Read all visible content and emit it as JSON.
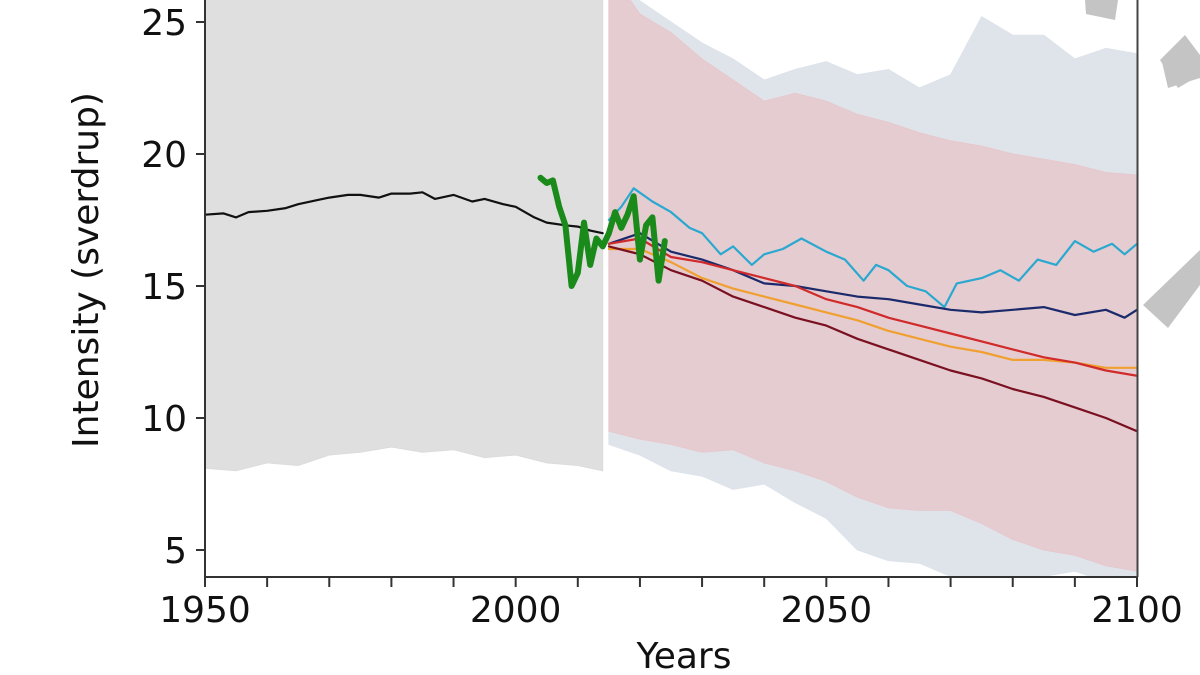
{
  "chart_data": {
    "type": "line",
    "title": "",
    "xlabel": "Years",
    "ylabel": "Intensity (sverdrup)",
    "xlim": [
      1950,
      2100
    ],
    "ylim": [
      4,
      26
    ],
    "x_ticks": [
      1950,
      2000,
      2050,
      2100
    ],
    "x_tick_labels": [
      "1950",
      "2000",
      "2050",
      "2100"
    ],
    "x_minor_tick_step": 10,
    "y_ticks": [
      5,
      10,
      15,
      20,
      25
    ],
    "y_tick_labels": [
      "5",
      "10",
      "15",
      "20",
      "25"
    ],
    "grid": false,
    "legend": null,
    "bands": [
      {
        "name": "historical-spread",
        "color": "#dcdcdc",
        "opacity": 0.9,
        "x": [
          1950,
          1955,
          1960,
          1965,
          1970,
          1975,
          1980,
          1985,
          1990,
          1995,
          2000,
          2005,
          2010,
          2014
        ],
        "lower": [
          8.1,
          8.0,
          8.3,
          8.2,
          8.6,
          8.7,
          8.9,
          8.7,
          8.8,
          8.5,
          8.6,
          8.3,
          8.2,
          8.0
        ],
        "upper": [
          27,
          27,
          27,
          27,
          27,
          27,
          27,
          27,
          27,
          27,
          27,
          26.5,
          26,
          27
        ]
      },
      {
        "name": "projection-spread-low-emissions",
        "color": "#dde3ea",
        "opacity": 0.95,
        "x": [
          2015,
          2020,
          2025,
          2030,
          2035,
          2040,
          2045,
          2050,
          2055,
          2060,
          2065,
          2070,
          2075,
          2080,
          2085,
          2090,
          2095,
          2100
        ],
        "lower": [
          9.0,
          8.6,
          8.0,
          7.8,
          7.3,
          7.5,
          6.8,
          6.2,
          5.0,
          4.6,
          4.5,
          4.0,
          3.6,
          3.8,
          4.0,
          4.2,
          3.8,
          3.9
        ],
        "upper": [
          27,
          25.8,
          25.0,
          24.2,
          23.6,
          22.8,
          23.2,
          23.5,
          23.0,
          23.2,
          22.5,
          23.0,
          25.2,
          24.5,
          24.5,
          23.6,
          24.0,
          23.8
        ]
      },
      {
        "name": "projection-spread-high-emissions",
        "color": "#e6c8cc",
        "opacity": 0.85,
        "x": [
          2015,
          2020,
          2025,
          2030,
          2035,
          2040,
          2045,
          2050,
          2055,
          2060,
          2065,
          2070,
          2075,
          2080,
          2085,
          2090,
          2095,
          2100
        ],
        "lower": [
          9.5,
          9.2,
          9.0,
          8.7,
          8.8,
          8.3,
          8.0,
          7.6,
          7.0,
          6.6,
          6.5,
          6.5,
          6.0,
          5.4,
          5.0,
          4.8,
          4.4,
          4.2
        ],
        "upper": [
          27,
          25.3,
          24.6,
          23.6,
          22.8,
          22.0,
          22.3,
          22.0,
          21.5,
          21.2,
          20.8,
          20.5,
          20.3,
          20.0,
          19.8,
          19.6,
          19.3,
          19.2
        ]
      }
    ],
    "series": [
      {
        "name": "historical-model-mean",
        "color": "#111111",
        "width": 2.2,
        "x": [
          1950,
          1953,
          1955,
          1957,
          1960,
          1963,
          1965,
          1968,
          1970,
          1973,
          1975,
          1978,
          1980,
          1983,
          1985,
          1987,
          1990,
          1993,
          1995,
          1998,
          2000,
          2003,
          2005,
          2008,
          2010,
          2012,
          2014
        ],
        "values": [
          17.7,
          17.75,
          17.6,
          17.8,
          17.85,
          17.95,
          18.1,
          18.25,
          18.35,
          18.45,
          18.45,
          18.35,
          18.5,
          18.5,
          18.55,
          18.3,
          18.45,
          18.2,
          18.3,
          18.1,
          18.0,
          17.6,
          17.4,
          17.3,
          17.25,
          17.1,
          17.0
        ]
      },
      {
        "name": "observations",
        "color": "#1a8a1a",
        "width": 6,
        "x": [
          2004,
          2005,
          2006,
          2007,
          2008,
          2009,
          2010,
          2011,
          2012,
          2013,
          2014,
          2015,
          2016,
          2017,
          2018,
          2019,
          2020,
          2021,
          2022,
          2023,
          2024
        ],
        "values": [
          19.1,
          18.9,
          19.0,
          18.0,
          17.3,
          15.0,
          15.5,
          17.4,
          15.8,
          16.8,
          16.5,
          17.0,
          17.8,
          17.2,
          17.7,
          18.4,
          16.0,
          17.3,
          17.6,
          15.2,
          16.7
        ]
      },
      {
        "name": "scenario-low-cyan",
        "color": "#2aa8d0",
        "width": 2.2,
        "x": [
          2015,
          2017,
          2019,
          2022,
          2025,
          2028,
          2030,
          2033,
          2035,
          2038,
          2040,
          2043,
          2046,
          2050,
          2053,
          2056,
          2058,
          2060,
          2063,
          2066,
          2069,
          2071,
          2075,
          2078,
          2081,
          2084,
          2087,
          2090,
          2093,
          2096,
          2098,
          2100
        ],
        "values": [
          17.5,
          18.0,
          18.7,
          18.2,
          17.8,
          17.2,
          17.0,
          16.2,
          16.5,
          15.8,
          16.2,
          16.4,
          16.8,
          16.3,
          16.0,
          15.2,
          15.8,
          15.6,
          15.0,
          14.8,
          14.2,
          15.1,
          15.3,
          15.6,
          15.2,
          16.0,
          15.8,
          16.7,
          16.3,
          16.6,
          16.2,
          16.6
        ]
      },
      {
        "name": "scenario-medium-low-navy",
        "color": "#1b2a6b",
        "width": 2.2,
        "x": [
          2015,
          2020,
          2025,
          2030,
          2035,
          2040,
          2045,
          2050,
          2055,
          2060,
          2065,
          2070,
          2075,
          2080,
          2085,
          2090,
          2095,
          2098,
          2100
        ],
        "values": [
          16.6,
          17.0,
          16.3,
          16.0,
          15.6,
          15.1,
          15.0,
          14.8,
          14.6,
          14.5,
          14.3,
          14.1,
          14.0,
          14.1,
          14.2,
          13.9,
          14.1,
          13.8,
          14.1
        ]
      },
      {
        "name": "scenario-medium-red",
        "color": "#d02a2a",
        "width": 2.2,
        "x": [
          2015,
          2020,
          2025,
          2030,
          2035,
          2040,
          2045,
          2050,
          2055,
          2060,
          2065,
          2070,
          2075,
          2080,
          2085,
          2090,
          2095,
          2100
        ],
        "values": [
          16.6,
          16.8,
          16.1,
          15.9,
          15.6,
          15.3,
          15.0,
          14.5,
          14.2,
          13.8,
          13.5,
          13.2,
          12.9,
          12.6,
          12.3,
          12.1,
          11.8,
          11.6
        ]
      },
      {
        "name": "scenario-medium-high-orange",
        "color": "#f0a030",
        "width": 2.2,
        "x": [
          2015,
          2020,
          2025,
          2030,
          2035,
          2040,
          2045,
          2050,
          2055,
          2060,
          2065,
          2070,
          2075,
          2080,
          2085,
          2090,
          2095,
          2100
        ],
        "values": [
          16.4,
          16.4,
          15.9,
          15.3,
          14.9,
          14.6,
          14.3,
          14.0,
          13.7,
          13.3,
          13.0,
          12.7,
          12.5,
          12.2,
          12.2,
          12.1,
          11.9,
          11.9
        ]
      },
      {
        "name": "scenario-high-darkred",
        "color": "#7a1020",
        "width": 2.2,
        "x": [
          2015,
          2020,
          2025,
          2030,
          2035,
          2040,
          2045,
          2050,
          2055,
          2060,
          2065,
          2070,
          2075,
          2080,
          2085,
          2090,
          2095,
          2100
        ],
        "values": [
          16.5,
          16.2,
          15.6,
          15.2,
          14.6,
          14.2,
          13.8,
          13.5,
          13.0,
          12.6,
          12.2,
          11.8,
          11.5,
          11.1,
          10.8,
          10.4,
          10.0,
          9.5
        ]
      }
    ],
    "annotations": [
      {
        "type": "vertical-divider",
        "x": 2014.5,
        "color": "#ffffff"
      }
    ]
  },
  "decor": {
    "watermark_color": "#c4c4c4"
  }
}
